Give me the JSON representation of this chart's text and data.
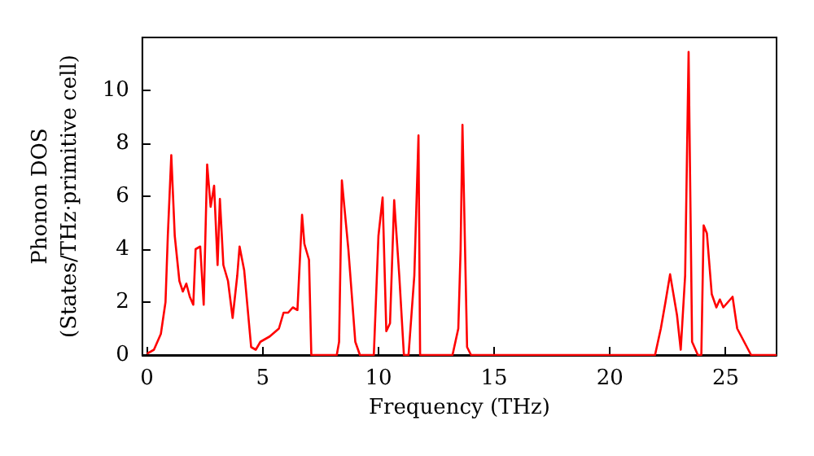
{
  "chart_data": {
    "type": "line",
    "xlabel": "Frequency (THz)",
    "ylabel": "Phonon DOS\n(States/THz·primitive cell)",
    "xlim": [
      -0.2,
      27.2
    ],
    "xticks": [
      0,
      5,
      10,
      15,
      20,
      25
    ],
    "ylim": [
      0,
      12
    ],
    "yticks": [
      0,
      2,
      4,
      6,
      8,
      10
    ],
    "grid": false,
    "marker": "none",
    "line_style": "solid",
    "x": [
      0,
      0.3,
      0.6,
      0.8,
      0.9,
      1.05,
      1.2,
      1.4,
      1.55,
      1.7,
      1.85,
      2.0,
      2.1,
      2.3,
      2.45,
      2.6,
      2.75,
      2.9,
      3.05,
      3.15,
      3.3,
      3.5,
      3.7,
      3.9,
      4.0,
      4.2,
      4.5,
      4.7,
      4.9,
      5.3,
      5.7,
      5.9,
      6.1,
      6.3,
      6.5,
      6.7,
      6.8,
      7.0,
      7.1,
      8.2,
      8.3,
      8.42,
      8.7,
      9.0,
      9.2,
      9.8,
      10.0,
      10.18,
      10.34,
      10.5,
      10.68,
      10.9,
      11.1,
      11.3,
      11.55,
      11.73,
      11.8,
      13.2,
      13.45,
      13.55,
      13.63,
      13.83,
      14.0,
      21.95,
      22.2,
      22.4,
      22.6,
      22.9,
      23.06,
      23.25,
      23.4,
      23.55,
      23.8,
      23.95,
      24.05,
      24.19,
      24.4,
      24.6,
      24.75,
      24.9,
      25.3,
      25.5,
      25.8,
      26.1,
      27.2
    ],
    "series": [
      {
        "color": "#ff0000",
        "values": [
          0.05,
          0.2,
          0.8,
          2.0,
          4.5,
          7.55,
          4.5,
          2.8,
          2.4,
          2.7,
          2.2,
          1.9,
          4.0,
          4.1,
          1.9,
          7.2,
          5.6,
          6.4,
          3.4,
          5.9,
          3.4,
          2.8,
          1.4,
          3.0,
          4.1,
          3.2,
          0.3,
          0.2,
          0.5,
          0.7,
          1.0,
          1.6,
          1.6,
          1.8,
          1.7,
          5.3,
          4.2,
          3.6,
          0,
          0,
          0.5,
          6.6,
          4.0,
          0.5,
          0,
          0,
          4.5,
          5.95,
          0.9,
          1.2,
          5.85,
          3.0,
          0,
          0,
          3.0,
          8.3,
          0,
          0,
          1.0,
          4.0,
          8.7,
          0.3,
          0,
          0,
          1.0,
          2.0,
          3.05,
          1.5,
          0.2,
          3.0,
          11.45,
          0.5,
          0,
          0,
          4.9,
          4.6,
          2.3,
          1.8,
          2.1,
          1.8,
          2.2,
          1.0,
          0.5,
          0,
          0
        ]
      }
    ]
  }
}
